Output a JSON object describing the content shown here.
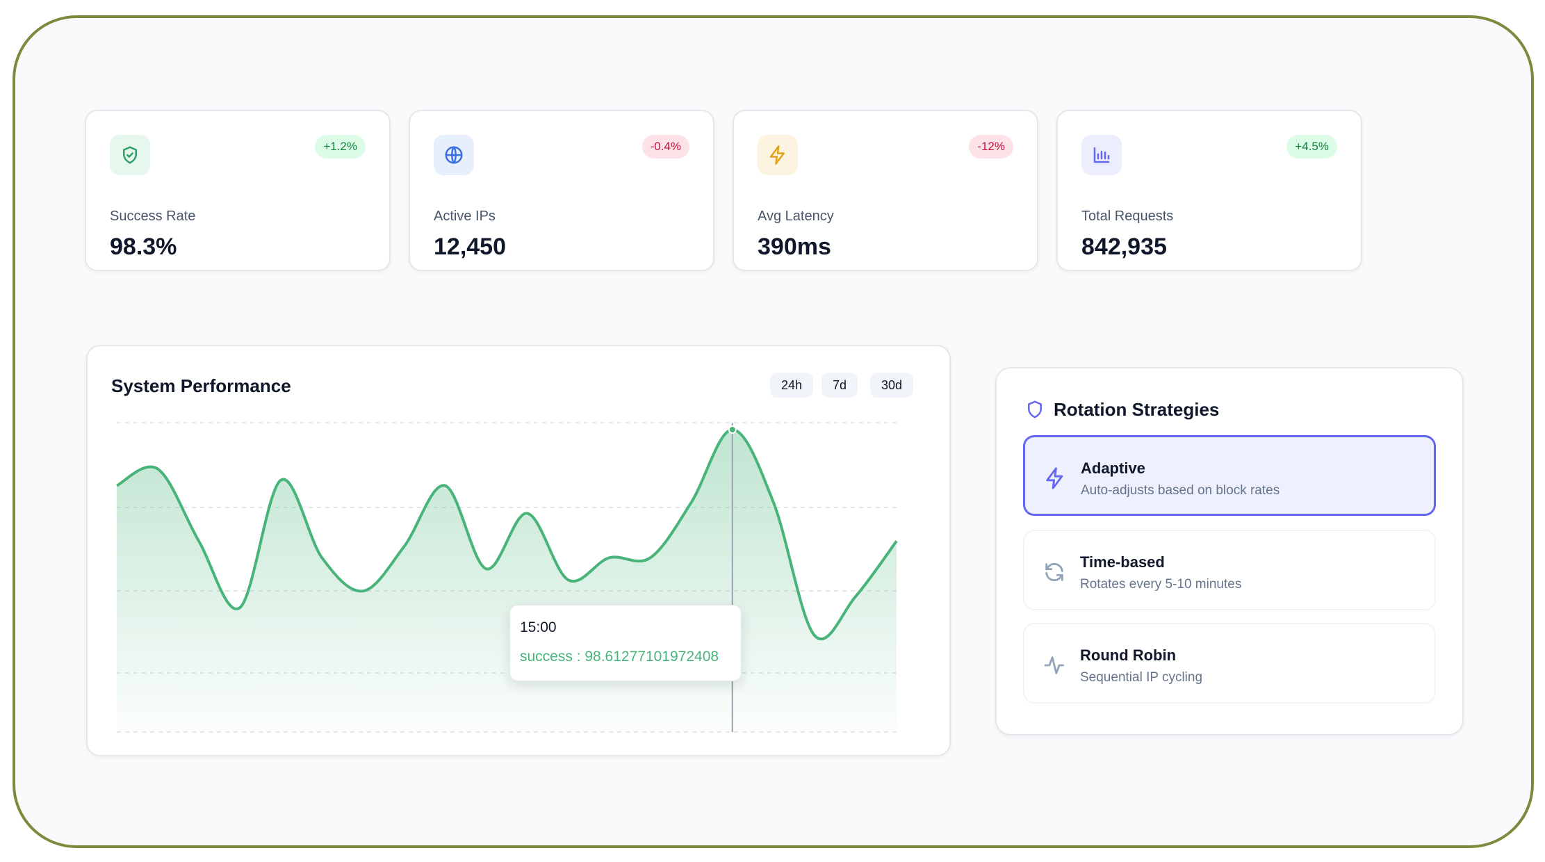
{
  "stats": [
    {
      "label": "Success Rate",
      "value": "98.3%",
      "change": "+1.2%",
      "trend": "up",
      "icon": "shield-check-icon",
      "icon_bg": "#e6f7ee",
      "icon_color": "#2f9e67"
    },
    {
      "label": "Active IPs",
      "value": "12,450",
      "change": "-0.4%",
      "trend": "down",
      "icon": "globe-icon",
      "icon_bg": "#e7effd",
      "icon_color": "#3b6fe0"
    },
    {
      "label": "Avg Latency",
      "value": "390ms",
      "change": "-12%",
      "trend": "down",
      "icon": "lightning-icon",
      "icon_bg": "#fdf3e1",
      "icon_color": "#e2a21a"
    },
    {
      "label": "Total Requests",
      "value": "842,935",
      "change": "+4.5%",
      "trend": "up",
      "icon": "bar-chart-icon",
      "icon_bg": "#eceefe",
      "icon_color": "#6366f1"
    }
  ],
  "performance": {
    "title": "System Performance",
    "ranges": [
      "24h",
      "7d",
      "30d"
    ],
    "tooltip": {
      "time": "15:00",
      "text": "success : 98.61277101972408"
    }
  },
  "chart_data": {
    "type": "area",
    "series": [
      {
        "name": "success",
        "values": [
          97.6,
          97.9,
          96.6,
          95.4,
          97.7,
          96.3,
          95.7,
          96.5,
          97.6,
          96.1,
          97.1,
          95.9,
          96.3,
          96.3,
          97.3,
          98.61,
          97.3,
          94.9,
          95.6,
          96.6
        ]
      }
    ],
    "tooltip_index": 15,
    "grid": "horizontal dashed",
    "line_color": "#48b47a",
    "fill_color": "#c8ecd8"
  },
  "strategies": {
    "title": "Rotation Strategies",
    "items": [
      {
        "name": "Adaptive",
        "desc": "Auto-adjusts based on block rates",
        "icon": "lightning-icon",
        "active": true
      },
      {
        "name": "Time-based",
        "desc": "Rotates every 5-10 minutes",
        "icon": "refresh-icon",
        "active": false
      },
      {
        "name": "Round Robin",
        "desc": "Sequential IP cycling",
        "icon": "activity-icon",
        "active": false
      }
    ]
  },
  "colors": {
    "accent": "#6366f1",
    "success": "#48b47a",
    "frame": "#7c8a3e"
  }
}
